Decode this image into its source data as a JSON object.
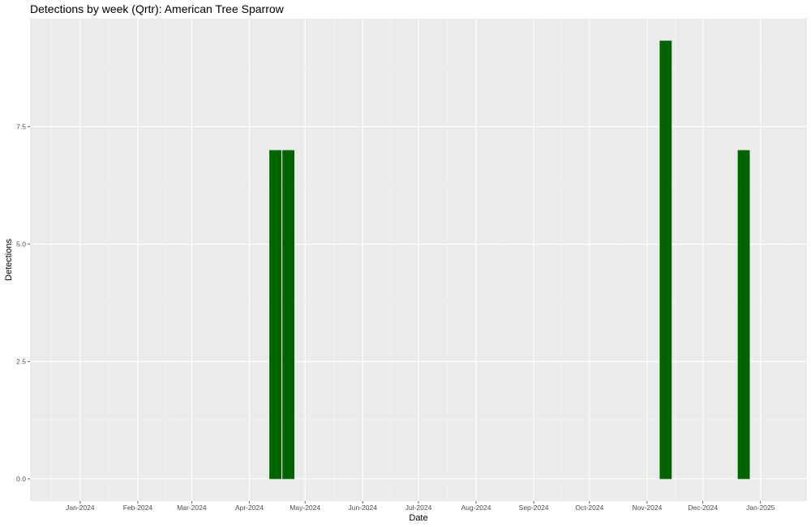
{
  "chart_data": {
    "type": "bar",
    "title": "Detections by week (Qrtr): American Tree Sparrow",
    "xlabel": "Date",
    "ylabel": "Detections",
    "x_tick_labels": [
      "Jan-2024",
      "Feb-2024",
      "Mar-2024",
      "Apr-2024",
      "May-2024",
      "Jun-2024",
      "Jul-2024",
      "Aug-2024",
      "Sep-2024",
      "Oct-2024",
      "Nov-2024",
      "Dec-2024",
      "Jan-2025"
    ],
    "x_tick_dates": [
      "2024-01-01",
      "2024-02-01",
      "2024-03-01",
      "2024-04-01",
      "2024-05-01",
      "2024-06-01",
      "2024-07-01",
      "2024-08-01",
      "2024-09-01",
      "2024-10-01",
      "2024-11-01",
      "2024-12-01",
      "2025-01-01"
    ],
    "xlim": [
      "2023-12-05",
      "2025-01-26"
    ],
    "y_tick_labels": [
      "0.0",
      "2.5",
      "5.0",
      "7.5"
    ],
    "y_ticks": [
      0,
      2.5,
      5.0,
      7.5
    ],
    "ylim": [
      -0.47,
      9.8
    ],
    "bars": [
      {
        "week": "2024-04-15",
        "value": 7
      },
      {
        "week": "2024-04-22",
        "value": 7
      },
      {
        "week": "2024-11-11",
        "value": 9.33
      },
      {
        "week": "2024-12-23",
        "value": 7
      }
    ],
    "bar_color": "#006400",
    "panel_background": "#ebebeb",
    "grid": true,
    "legend": "none"
  }
}
